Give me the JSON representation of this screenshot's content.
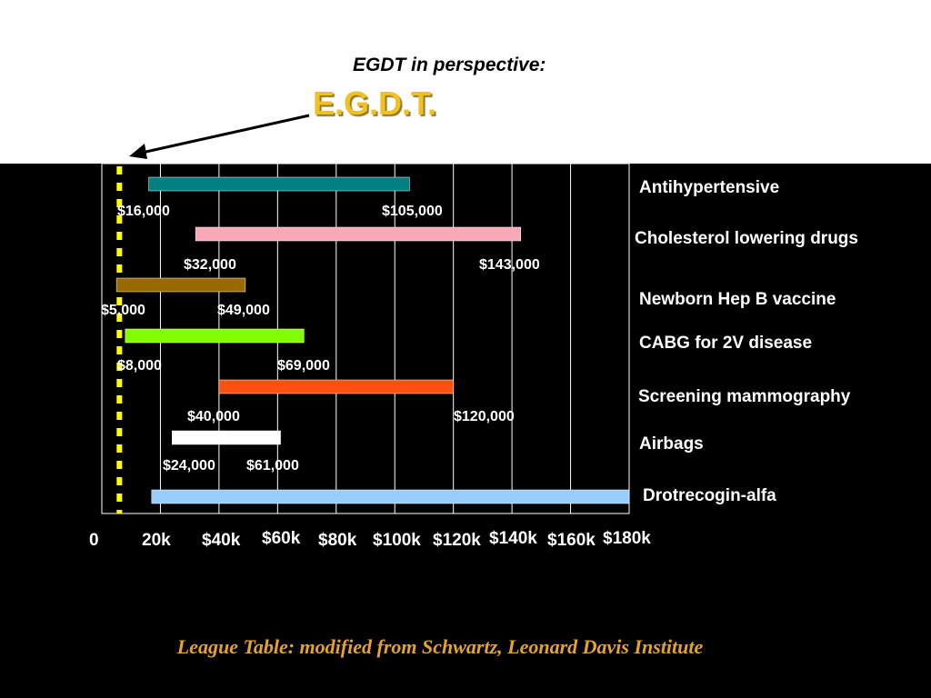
{
  "heading": "EGDT in perspective:",
  "marker_label": "E.G.D.T.",
  "footer": "League Table: modified from Schwartz, Leonard Davis Institute",
  "colors": {
    "background": "#000000",
    "marker": "#ffff00",
    "egdt_text": "#f2c021",
    "footer": "#e5a32a"
  },
  "chart_data": {
    "type": "bar",
    "orientation": "horizontal-range",
    "xlim": [
      0,
      180000
    ],
    "x_ticks": [
      {
        "value": 0,
        "label": "0"
      },
      {
        "value": 20000,
        "label": "20k"
      },
      {
        "value": 40000,
        "label": "$40k"
      },
      {
        "value": 60000,
        "label": "$60k"
      },
      {
        "value": 80000,
        "label": "$80k"
      },
      {
        "value": 100000,
        "label": "$100k"
      },
      {
        "value": 120000,
        "label": "$120k"
      },
      {
        "value": 140000,
        "label": "$140k"
      },
      {
        "value": 160000,
        "label": "$160k"
      },
      {
        "value": 180000,
        "label": "$180k"
      }
    ],
    "grid": true,
    "marker_value": 6000,
    "bars": [
      {
        "name": "Antihypertensive",
        "low": 16000,
        "high": 105000,
        "low_label": "$16,000",
        "high_label": "$105,000",
        "color": "#008080"
      },
      {
        "name": "Cholesterol lowering drugs",
        "low": 32000,
        "high": 143000,
        "low_label": "$32,000",
        "high_label": "$143,000",
        "color": "#f9a8b8"
      },
      {
        "name": "Newborn Hep B vaccine",
        "low": 5000,
        "high": 49000,
        "low_label": "$5,000",
        "high_label": "$49,000",
        "color": "#9a6a00"
      },
      {
        "name": "CABG for 2V disease",
        "low": 8000,
        "high": 69000,
        "low_label": "$8,000",
        "high_label": "$69,000",
        "color": "#80ff00"
      },
      {
        "name": "Screening mammography",
        "low": 40000,
        "high": 120000,
        "low_label": "$40,000",
        "high_label": "$120,000",
        "color": "#ff5010"
      },
      {
        "name": "Airbags",
        "low": 24000,
        "high": 61000,
        "low_label": "$24,000",
        "high_label": "$61,000",
        "color": "#ffffff"
      },
      {
        "name": "Drotrecogin-alfa",
        "low": 17000,
        "high": 180000,
        "low_label": "",
        "high_label": "",
        "color": "#99ccff"
      }
    ]
  }
}
